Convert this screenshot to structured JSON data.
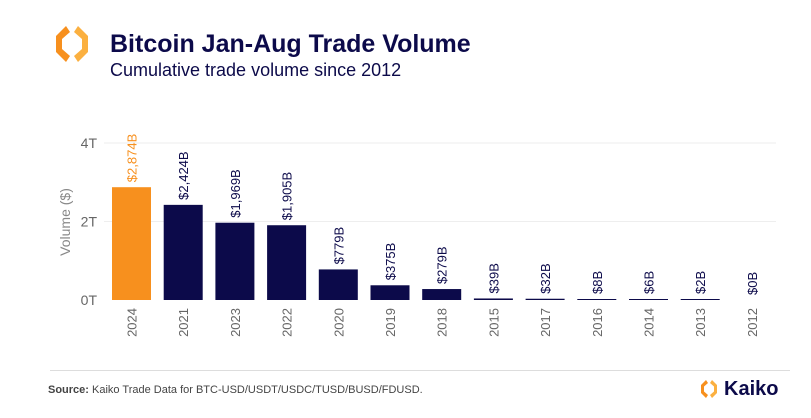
{
  "header": {
    "title": "Bitcoin Jan-Aug Trade Volume",
    "subtitle": "Cumulative trade volume since 2012"
  },
  "footer": {
    "source_label": "Source:",
    "source_text": " Kaiko Trade Data for BTC-USD/USDT/USDC/TUSD/BUSD/FDUSD.",
    "brand": "Kaiko"
  },
  "colors": {
    "highlight": "#f7901e",
    "bar": "#0c0a4a",
    "text": "#0c0a4a"
  },
  "chart_data": {
    "type": "bar",
    "title": "Bitcoin Jan-Aug Trade Volume",
    "subtitle": "Cumulative trade volume since 2012",
    "ylabel": "Volume ($)",
    "xlabel": "",
    "ylim": [
      0,
      4000
    ],
    "yticks": [
      {
        "v": 0,
        "label": "0T"
      },
      {
        "v": 2000,
        "label": "2T"
      },
      {
        "v": 4000,
        "label": "4T"
      }
    ],
    "grid": true,
    "unit": "billion USD",
    "categories": [
      "2024",
      "2021",
      "2023",
      "2022",
      "2020",
      "2019",
      "2018",
      "2015",
      "2017",
      "2016",
      "2014",
      "2013",
      "2012"
    ],
    "values": [
      2874,
      2424,
      1969,
      1905,
      779,
      375,
      279,
      39,
      32,
      8,
      6,
      2,
      0
    ],
    "labels": [
      "$2,874B",
      "$2,424B",
      "$1,969B",
      "$1,905B",
      "$779B",
      "$375B",
      "$279B",
      "$39B",
      "$32B",
      "$8B",
      "$6B",
      "$2B",
      "$0B"
    ],
    "highlight": "2024"
  }
}
